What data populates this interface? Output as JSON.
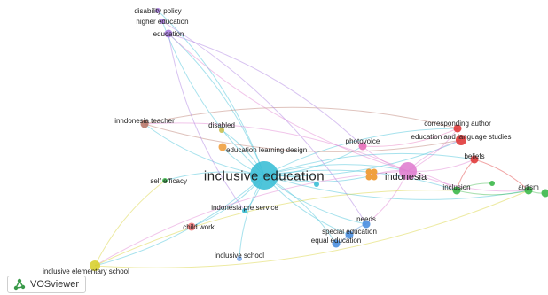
{
  "network": {
    "nodes": [
      {
        "id": "inclusive_education",
        "label": "inclusive education",
        "cluster": "cyan",
        "weight": 10
      },
      {
        "id": "indonesia",
        "label": "indonesia",
        "cluster": "magenta",
        "weight": 6
      },
      {
        "id": "disability_policy",
        "label": "disability policy",
        "cluster": "violet",
        "weight": 1
      },
      {
        "id": "higher_education",
        "label": "higher education",
        "cluster": "violet",
        "weight": 1
      },
      {
        "id": "education",
        "label": "education",
        "cluster": "violet",
        "weight": 2
      },
      {
        "id": "inndonesia_teacher",
        "label": "inndonesia teacher",
        "cluster": "brown",
        "weight": 2
      },
      {
        "id": "disabled",
        "label": "disabled",
        "cluster": "olive",
        "weight": 1
      },
      {
        "id": "education_learning_design",
        "label": "education learning design",
        "cluster": "orange",
        "weight": 2
      },
      {
        "id": "photovoice",
        "label": "photovoice",
        "cluster": "pink",
        "weight": 2
      },
      {
        "id": "corresponding_author",
        "label": "corresponding author",
        "cluster": "red",
        "weight": 2
      },
      {
        "id": "education_and_language_studies",
        "label": "education and language studies",
        "cluster": "red",
        "weight": 3
      },
      {
        "id": "beliefs",
        "label": "beliefs",
        "cluster": "red",
        "weight": 2
      },
      {
        "id": "self_efficacy",
        "label": "self efficacy",
        "cluster": "green",
        "weight": 1
      },
      {
        "id": "inclusion",
        "label": "inclusion",
        "cluster": "green",
        "weight": 2
      },
      {
        "id": "autism",
        "label": "autism",
        "cluster": "green",
        "weight": 2
      },
      {
        "id": "indonesia_pre_service",
        "label": "indonesia pre service",
        "cluster": "cyan",
        "weight": 1
      },
      {
        "id": "needs",
        "label": "needs",
        "cluster": "blue",
        "weight": 2
      },
      {
        "id": "child_work",
        "label": "child work",
        "cluster": "salmon",
        "weight": 2
      },
      {
        "id": "special_education",
        "label": "special education",
        "cluster": "blue",
        "weight": 2
      },
      {
        "id": "equal_education",
        "label": "equal education",
        "cluster": "blue",
        "weight": 2
      },
      {
        "id": "inclusive_school",
        "label": "inclusive school",
        "cluster": "lightblue",
        "weight": 1
      },
      {
        "id": "inclusive_elementary_school",
        "label": "inclusive elementary school",
        "cluster": "yellow",
        "weight": 3
      },
      {
        "id": "anon_orange",
        "label": "",
        "cluster": "orange",
        "weight": 3
      },
      {
        "id": "anon_teal",
        "label": "",
        "cluster": "cyan",
        "weight": 1
      },
      {
        "id": "anon_green1",
        "label": "",
        "cluster": "green",
        "weight": 1
      },
      {
        "id": "anon_green2",
        "label": "",
        "cluster": "green",
        "weight": 2
      }
    ],
    "edges": [
      [
        "inclusive_education",
        "indonesia"
      ],
      [
        "inclusive_education",
        "education"
      ],
      [
        "inclusive_education",
        "higher_education"
      ],
      [
        "inclusive_education",
        "disability_policy"
      ],
      [
        "inclusive_education",
        "inndonesia_teacher"
      ],
      [
        "inclusive_education",
        "disabled"
      ],
      [
        "inclusive_education",
        "education_learning_design"
      ],
      [
        "inclusive_education",
        "photovoice"
      ],
      [
        "inclusive_education",
        "corresponding_author"
      ],
      [
        "inclusive_education",
        "education_and_language_studies"
      ],
      [
        "inclusive_education",
        "beliefs"
      ],
      [
        "inclusive_education",
        "self_efficacy"
      ],
      [
        "inclusive_education",
        "inclusion"
      ],
      [
        "inclusive_education",
        "autism"
      ],
      [
        "inclusive_education",
        "indonesia_pre_service"
      ],
      [
        "inclusive_education",
        "needs"
      ],
      [
        "inclusive_education",
        "child_work"
      ],
      [
        "inclusive_education",
        "special_education"
      ],
      [
        "inclusive_education",
        "equal_education"
      ],
      [
        "inclusive_education",
        "inclusive_school"
      ],
      [
        "inclusive_education",
        "inclusive_elementary_school"
      ],
      [
        "inclusive_education",
        "anon_orange"
      ],
      [
        "inclusive_education",
        "anon_teal"
      ],
      [
        "indonesia",
        "corresponding_author"
      ],
      [
        "indonesia",
        "education_and_language_studies"
      ],
      [
        "indonesia",
        "beliefs"
      ],
      [
        "indonesia",
        "inclusion"
      ],
      [
        "indonesia",
        "autism"
      ],
      [
        "indonesia",
        "photovoice"
      ],
      [
        "indonesia",
        "anon_orange"
      ],
      [
        "indonesia",
        "needs"
      ],
      [
        "indonesia",
        "inndonesia_teacher"
      ],
      [
        "indonesia",
        "education"
      ],
      [
        "indonesia",
        "inclusive_elementary_school"
      ],
      [
        "inndonesia_teacher",
        "corresponding_author"
      ],
      [
        "inndonesia_teacher",
        "education_and_language_studies"
      ],
      [
        "education",
        "photovoice"
      ],
      [
        "education",
        "indonesia_pre_service"
      ],
      [
        "higher_education",
        "needs"
      ],
      [
        "beliefs",
        "inclusion"
      ],
      [
        "beliefs",
        "autism"
      ],
      [
        "inclusion",
        "autism"
      ],
      [
        "inclusion",
        "anon_green1"
      ],
      [
        "autism",
        "anon_green2"
      ],
      [
        "inclusive_elementary_school",
        "inclusion"
      ],
      [
        "inclusive_elementary_school",
        "autism"
      ],
      [
        "inclusive_elementary_school",
        "self_efficacy"
      ],
      [
        "photovoice",
        "corresponding_author"
      ],
      [
        "special_education",
        "needs"
      ],
      [
        "equal_education",
        "special_education"
      ]
    ]
  },
  "colors": {
    "cyan": "#3cbfd6",
    "magenta": "#e07fd0",
    "violet": "#a97be0",
    "brown": "#b8786a",
    "olive": "#c8c050",
    "orange": "#f0a040",
    "pink": "#e76fb8",
    "red": "#e03a3a",
    "green": "#3cb84a",
    "blue": "#4a8fe0",
    "salmon": "#f07a7a",
    "lightblue": "#8ab4f0",
    "yellow": "#d8d030"
  },
  "app": {
    "logo_text": "VOSviewer",
    "logo_icon": "vosviewer-network-icon"
  }
}
